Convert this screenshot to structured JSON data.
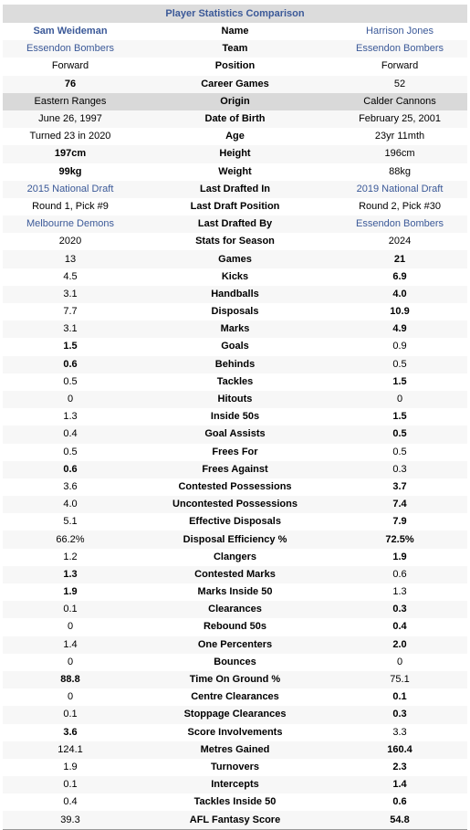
{
  "table": {
    "title": "Player Statistics Comparison",
    "rows": [
      {
        "l": "Sam Weideman",
        "m": "Name",
        "r": "Harrison Jones",
        "bold": [
          "l"
        ],
        "link": true
      },
      {
        "l": "Essendon Bombers",
        "m": "Team",
        "r": "Essendon Bombers",
        "bold": [],
        "link": true
      },
      {
        "l": "Forward",
        "m": "Position",
        "r": "Forward",
        "bold": []
      },
      {
        "l": "76",
        "m": "Career Games",
        "r": "52",
        "bold": [
          "l"
        ]
      },
      {
        "l": "Eastern Ranges",
        "m": "Origin",
        "r": "Calder Cannons",
        "bold": [],
        "shade": true
      },
      {
        "l": "June 26, 1997",
        "m": "Date of Birth",
        "r": "February 25, 2001",
        "bold": []
      },
      {
        "l": "Turned 23 in 2020",
        "m": "Age",
        "r": "23yr 11mth",
        "bold": []
      },
      {
        "l": "197cm",
        "m": "Height",
        "r": "196cm",
        "bold": [
          "l"
        ]
      },
      {
        "l": "99kg",
        "m": "Weight",
        "r": "88kg",
        "bold": [
          "l"
        ]
      },
      {
        "l": "2015 National Draft",
        "m": "Last Drafted In",
        "r": "2019 National Draft",
        "bold": [],
        "link": true
      },
      {
        "l": "Round 1, Pick #9",
        "m": "Last Draft Position",
        "r": "Round 2, Pick #30",
        "bold": []
      },
      {
        "l": "Melbourne Demons",
        "m": "Last Drafted By",
        "r": "Essendon Bombers",
        "bold": [],
        "link": true
      },
      {
        "l": "2020",
        "m": "Stats for Season",
        "r": "2024",
        "bold": []
      },
      {
        "l": "13",
        "m": "Games",
        "r": "21",
        "bold": [
          "r"
        ]
      },
      {
        "l": "4.5",
        "m": "Kicks",
        "r": "6.9",
        "bold": [
          "r"
        ]
      },
      {
        "l": "3.1",
        "m": "Handballs",
        "r": "4.0",
        "bold": [
          "r"
        ]
      },
      {
        "l": "7.7",
        "m": "Disposals",
        "r": "10.9",
        "bold": [
          "r"
        ]
      },
      {
        "l": "3.1",
        "m": "Marks",
        "r": "4.9",
        "bold": [
          "r"
        ]
      },
      {
        "l": "1.5",
        "m": "Goals",
        "r": "0.9",
        "bold": [
          "l"
        ]
      },
      {
        "l": "0.6",
        "m": "Behinds",
        "r": "0.5",
        "bold": [
          "l"
        ]
      },
      {
        "l": "0.5",
        "m": "Tackles",
        "r": "1.5",
        "bold": [
          "r"
        ]
      },
      {
        "l": "0",
        "m": "Hitouts",
        "r": "0",
        "bold": []
      },
      {
        "l": "1.3",
        "m": "Inside 50s",
        "r": "1.5",
        "bold": [
          "r"
        ]
      },
      {
        "l": "0.4",
        "m": "Goal Assists",
        "r": "0.5",
        "bold": [
          "r"
        ]
      },
      {
        "l": "0.5",
        "m": "Frees For",
        "r": "0.5",
        "bold": []
      },
      {
        "l": "0.6",
        "m": "Frees Against",
        "r": "0.3",
        "bold": [
          "l"
        ]
      },
      {
        "l": "3.6",
        "m": "Contested Possessions",
        "r": "3.7",
        "bold": [
          "r"
        ]
      },
      {
        "l": "4.0",
        "m": "Uncontested Possessions",
        "r": "7.4",
        "bold": [
          "r"
        ]
      },
      {
        "l": "5.1",
        "m": "Effective Disposals",
        "r": "7.9",
        "bold": [
          "r"
        ]
      },
      {
        "l": "66.2%",
        "m": "Disposal Efficiency %",
        "r": "72.5%",
        "bold": [
          "r"
        ]
      },
      {
        "l": "1.2",
        "m": "Clangers",
        "r": "1.9",
        "bold": [
          "r"
        ]
      },
      {
        "l": "1.3",
        "m": "Contested Marks",
        "r": "0.6",
        "bold": [
          "l"
        ]
      },
      {
        "l": "1.9",
        "m": "Marks Inside 50",
        "r": "1.3",
        "bold": [
          "l"
        ]
      },
      {
        "l": "0.1",
        "m": "Clearances",
        "r": "0.3",
        "bold": [
          "r"
        ]
      },
      {
        "l": "0",
        "m": "Rebound 50s",
        "r": "0.4",
        "bold": [
          "r"
        ]
      },
      {
        "l": "1.4",
        "m": "One Percenters",
        "r": "2.0",
        "bold": [
          "r"
        ]
      },
      {
        "l": "0",
        "m": "Bounces",
        "r": "0",
        "bold": []
      },
      {
        "l": "88.8",
        "m": "Time On Ground %",
        "r": "75.1",
        "bold": [
          "l"
        ]
      },
      {
        "l": "0",
        "m": "Centre Clearances",
        "r": "0.1",
        "bold": [
          "r"
        ]
      },
      {
        "l": "0.1",
        "m": "Stoppage Clearances",
        "r": "0.3",
        "bold": [
          "r"
        ]
      },
      {
        "l": "3.6",
        "m": "Score Involvements",
        "r": "3.3",
        "bold": [
          "l"
        ]
      },
      {
        "l": "124.1",
        "m": "Metres Gained",
        "r": "160.4",
        "bold": [
          "r"
        ]
      },
      {
        "l": "1.9",
        "m": "Turnovers",
        "r": "2.3",
        "bold": [
          "r"
        ]
      },
      {
        "l": "0.1",
        "m": "Intercepts",
        "r": "1.4",
        "bold": [
          "r"
        ]
      },
      {
        "l": "0.4",
        "m": "Tackles Inside 50",
        "r": "0.6",
        "bold": [
          "r"
        ]
      },
      {
        "l": "39.3",
        "m": "AFL Fantasy Score",
        "r": "54.8",
        "bold": [
          "r"
        ]
      }
    ]
  }
}
